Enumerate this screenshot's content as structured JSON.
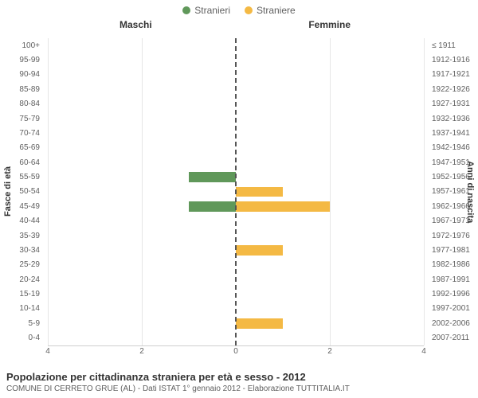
{
  "legend": {
    "male": {
      "label": "Stranieri",
      "color": "#60985a"
    },
    "female": {
      "label": "Straniere",
      "color": "#f4b944"
    }
  },
  "columns": {
    "left": "Maschi",
    "right": "Femmine"
  },
  "axis_labels": {
    "left": "Fasce di età",
    "right": "Anni di nascita"
  },
  "x": {
    "max": 4,
    "ticks_left": [
      4,
      2,
      0
    ],
    "ticks_right": [
      0,
      2,
      4
    ]
  },
  "grid_color": "#e6e6e6",
  "center_line_color": "#555555",
  "background_color": "#ffffff",
  "tick_font_size": 10,
  "rows": [
    {
      "age": "100+",
      "birth": "≤ 1911",
      "m": 0,
      "f": 0
    },
    {
      "age": "95-99",
      "birth": "1912-1916",
      "m": 0,
      "f": 0
    },
    {
      "age": "90-94",
      "birth": "1917-1921",
      "m": 0,
      "f": 0
    },
    {
      "age": "85-89",
      "birth": "1922-1926",
      "m": 0,
      "f": 0
    },
    {
      "age": "80-84",
      "birth": "1927-1931",
      "m": 0,
      "f": 0
    },
    {
      "age": "75-79",
      "birth": "1932-1936",
      "m": 0,
      "f": 0
    },
    {
      "age": "70-74",
      "birth": "1937-1941",
      "m": 0,
      "f": 0
    },
    {
      "age": "65-69",
      "birth": "1942-1946",
      "m": 0,
      "f": 0
    },
    {
      "age": "60-64",
      "birth": "1947-1951",
      "m": 0,
      "f": 0
    },
    {
      "age": "55-59",
      "birth": "1952-1956",
      "m": 1,
      "f": 0
    },
    {
      "age": "50-54",
      "birth": "1957-1961",
      "m": 0,
      "f": 1
    },
    {
      "age": "45-49",
      "birth": "1962-1966",
      "m": 1,
      "f": 2
    },
    {
      "age": "40-44",
      "birth": "1967-1971",
      "m": 0,
      "f": 0
    },
    {
      "age": "35-39",
      "birth": "1972-1976",
      "m": 0,
      "f": 0
    },
    {
      "age": "30-34",
      "birth": "1977-1981",
      "m": 0,
      "f": 1
    },
    {
      "age": "25-29",
      "birth": "1982-1986",
      "m": 0,
      "f": 0
    },
    {
      "age": "20-24",
      "birth": "1987-1991",
      "m": 0,
      "f": 0
    },
    {
      "age": "15-19",
      "birth": "1992-1996",
      "m": 0,
      "f": 0
    },
    {
      "age": "10-14",
      "birth": "1997-2001",
      "m": 0,
      "f": 0
    },
    {
      "age": "5-9",
      "birth": "2002-2006",
      "m": 0,
      "f": 1
    },
    {
      "age": "0-4",
      "birth": "2007-2011",
      "m": 0,
      "f": 0
    }
  ],
  "caption": {
    "title": "Popolazione per cittadinanza straniera per età e sesso - 2012",
    "sub": "COMUNE DI CERRETO GRUE (AL) - Dati ISTAT 1° gennaio 2012 - Elaborazione TUTTITALIA.IT"
  }
}
